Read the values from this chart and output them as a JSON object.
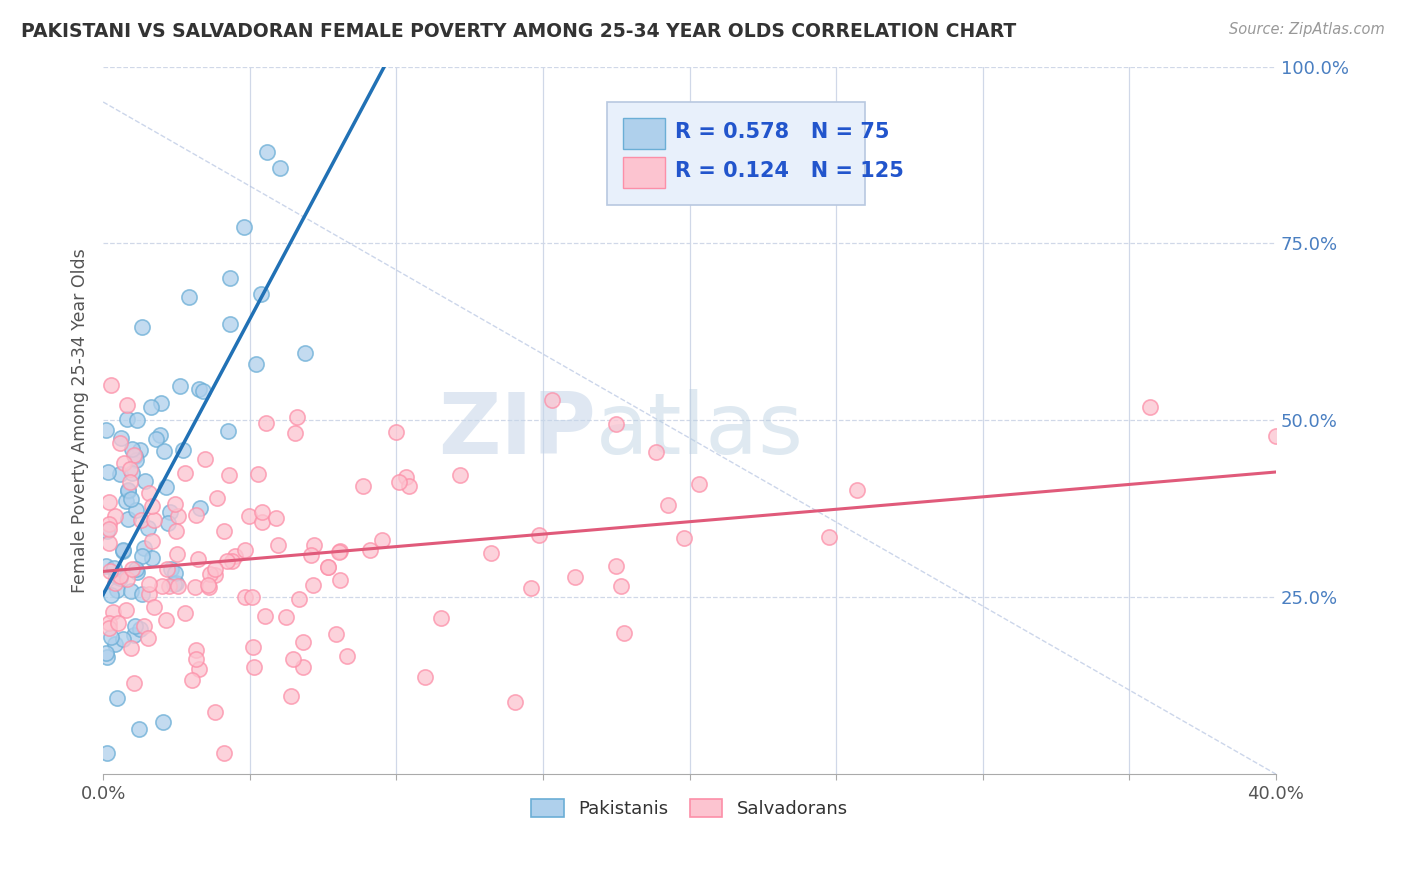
{
  "title": "PAKISTANI VS SALVADORAN FEMALE POVERTY AMONG 25-34 YEAR OLDS CORRELATION CHART",
  "source": "Source: ZipAtlas.com",
  "ylabel": "Female Poverty Among 25-34 Year Olds",
  "xlim": [
    0.0,
    0.4
  ],
  "ylim": [
    0.0,
    1.0
  ],
  "pakistani_R": 0.578,
  "pakistani_N": 75,
  "salvadoran_R": 0.124,
  "salvadoran_N": 125,
  "blue_color": "#6baed6",
  "pink_color": "#fc8fa8",
  "blue_line_color": "#2171b5",
  "pink_line_color": "#e05a7a",
  "blue_fill": "#afd0ec",
  "pink_fill": "#fcc4d0",
  "watermark_zip": "ZIP",
  "watermark_atlas": "atlas",
  "grid_color": "#d0d8e8",
  "legend_bg": "#ddeeff"
}
